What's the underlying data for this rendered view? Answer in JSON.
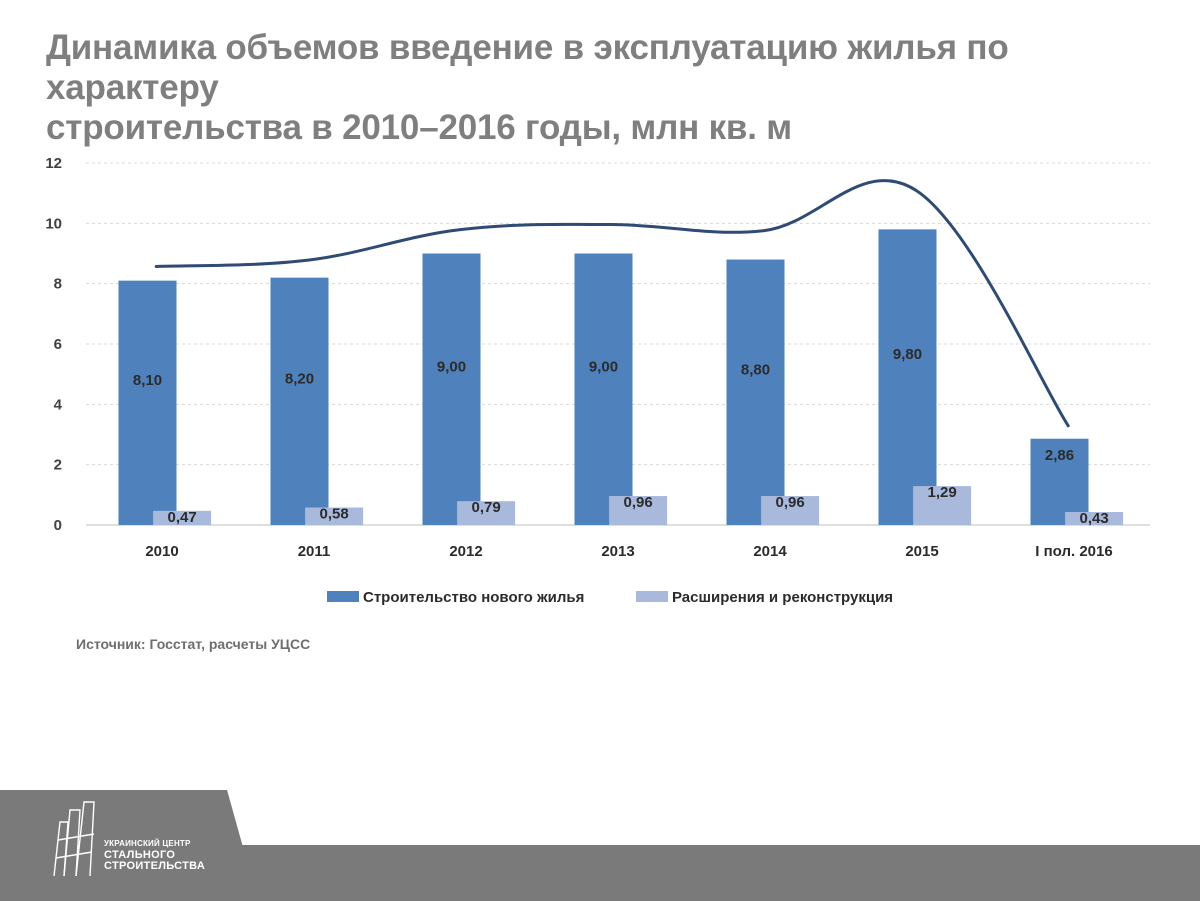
{
  "title": {
    "line1": "Динамика объемов введение в эксплуатацию жилья по характеру",
    "line2": "строительства в 2010–2016 годы, млн кв. м"
  },
  "source": "Источник: Госстат, расчеты УЦСС",
  "logo": {
    "line1": "УКРАИНСКИЙ ЦЕНТР",
    "line2": "СТАЛЬНОГО",
    "line3": "СТРОИТЕЛЬСТВА"
  },
  "chart_data": {
    "type": "bar",
    "categories": [
      "2010",
      "2011",
      "2012",
      "2013",
      "2014",
      "2015",
      "I пол. 2016"
    ],
    "series": [
      {
        "name": "Строительство нового жилья",
        "color": "#4f81bd",
        "values": [
          8.1,
          8.2,
          9.0,
          9.0,
          8.8,
          9.8,
          2.86
        ],
        "labels": [
          "8,10",
          "8,20",
          "9,00",
          "9,00",
          "8,80",
          "9,80",
          "2,86"
        ]
      },
      {
        "name": "Расширения и реконструкция",
        "color": "#a9b9dc",
        "values": [
          0.47,
          0.58,
          0.79,
          0.96,
          0.96,
          1.29,
          0.43
        ],
        "labels": [
          "0,47",
          "0,58",
          "0,79",
          "0,96",
          "0,96",
          "1,29",
          "0,43"
        ]
      }
    ],
    "trend_line": {
      "type": "line",
      "color": "#2f4b73",
      "smooth": true,
      "values": [
        8.57,
        8.78,
        9.79,
        9.96,
        9.76,
        11.09,
        3.29
      ]
    },
    "ylim": [
      0,
      12
    ],
    "yticks": [
      "0",
      "2",
      "4",
      "6",
      "8",
      "10",
      "12"
    ],
    "grid": true,
    "legend_position": "bottom"
  }
}
